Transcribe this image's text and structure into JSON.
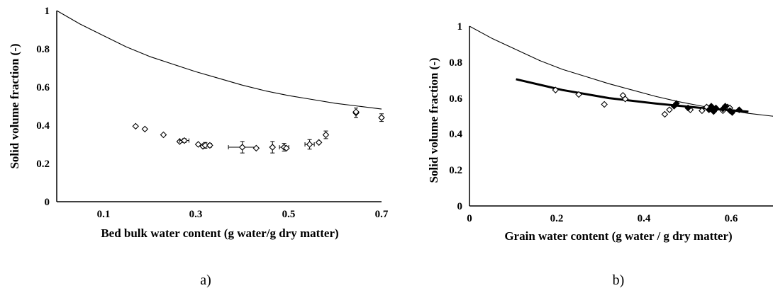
{
  "chart_data": [
    {
      "type": "scatter",
      "title": "",
      "caption": "a)",
      "xlabel": "Bed bulk water content (g water/g dry matter)",
      "ylabel": "Solid volume fraction (-)",
      "xlim": [
        0,
        0.7
      ],
      "ylim": [
        0,
        1
      ],
      "x_ticks": [
        "0.1",
        "0.3",
        "0.5",
        "0.7"
      ],
      "y_ticks": [
        "0",
        "0.2",
        "0.4",
        "0.6",
        "0.8",
        "1"
      ],
      "grid": false,
      "series": [
        {
          "style": "thin-line",
          "x": [
            0.0,
            0.05,
            0.1,
            0.15,
            0.2,
            0.25,
            0.3,
            0.35,
            0.4,
            0.45,
            0.5,
            0.55,
            0.6,
            0.65,
            0.7
          ],
          "y": [
            1.0,
            0.93,
            0.87,
            0.81,
            0.76,
            0.72,
            0.68,
            0.645,
            0.61,
            0.58,
            0.555,
            0.535,
            0.515,
            0.5,
            0.485
          ]
        },
        {
          "style": "open-diamond",
          "points": [
            {
              "x": 0.17,
              "y": 0.395,
              "ey": 0,
              "ex": 0
            },
            {
              "x": 0.19,
              "y": 0.38,
              "ey": 0,
              "ex": 0
            },
            {
              "x": 0.23,
              "y": 0.35,
              "ey": 0,
              "ex": 0
            },
            {
              "x": 0.265,
              "y": 0.315,
              "ey": 0,
              "ex": 0
            },
            {
              "x": 0.275,
              "y": 0.32,
              "ey": 0.01,
              "ex": 0.01
            },
            {
              "x": 0.305,
              "y": 0.3,
              "ey": 0,
              "ex": 0
            },
            {
              "x": 0.315,
              "y": 0.29,
              "ey": 0,
              "ex": 0
            },
            {
              "x": 0.32,
              "y": 0.295,
              "ey": 0.015,
              "ex": 0
            },
            {
              "x": 0.33,
              "y": 0.295,
              "ey": 0.01,
              "ex": 0
            },
            {
              "x": 0.4,
              "y": 0.285,
              "ey": 0.03,
              "ex": 0.03
            },
            {
              "x": 0.43,
              "y": 0.28,
              "ey": 0,
              "ex": 0
            },
            {
              "x": 0.465,
              "y": 0.285,
              "ey": 0.03,
              "ex": 0
            },
            {
              "x": 0.49,
              "y": 0.285,
              "ey": 0.02,
              "ex": 0.01
            },
            {
              "x": 0.495,
              "y": 0.28,
              "ey": 0,
              "ex": 0
            },
            {
              "x": 0.545,
              "y": 0.3,
              "ey": 0.025,
              "ex": 0.01
            },
            {
              "x": 0.565,
              "y": 0.31,
              "ey": 0,
              "ex": 0
            },
            {
              "x": 0.58,
              "y": 0.35,
              "ey": 0.02,
              "ex": 0
            },
            {
              "x": 0.645,
              "y": 0.465,
              "ey": 0.025,
              "ex": 0
            },
            {
              "x": 0.645,
              "y": 0.47,
              "ey": 0,
              "ex": 0
            },
            {
              "x": 0.7,
              "y": 0.44,
              "ey": 0.02,
              "ex": 0
            }
          ]
        }
      ]
    },
    {
      "type": "scatter",
      "title": "",
      "caption": "b)",
      "xlabel": "Grain water content (g water / g dry matter)",
      "ylabel": "Solid volume fraction (-)",
      "xlim": [
        0,
        0.7
      ],
      "ylim": [
        0,
        1
      ],
      "x_ticks": [
        "0",
        "0.2",
        "0.4",
        "0.6"
      ],
      "y_ticks": [
        "0",
        "0.2",
        "0.4",
        "0.6",
        "0.8",
        "1"
      ],
      "grid": false,
      "series": [
        {
          "style": "thin-line",
          "x": [
            0.0,
            0.05,
            0.1,
            0.15,
            0.2,
            0.25,
            0.3,
            0.35,
            0.4,
            0.45,
            0.5,
            0.55,
            0.6,
            0.65,
            0.7
          ],
          "y": [
            1.0,
            0.93,
            0.87,
            0.81,
            0.76,
            0.72,
            0.68,
            0.645,
            0.61,
            0.58,
            0.555,
            0.535,
            0.515,
            0.5,
            0.485
          ]
        },
        {
          "style": "thick-line",
          "x": [
            0.1,
            0.2,
            0.3,
            0.4,
            0.5,
            0.6
          ],
          "y": [
            0.705,
            0.645,
            0.6,
            0.57,
            0.545,
            0.525
          ]
        },
        {
          "style": "open-diamond",
          "points": [
            {
              "x": 0.185,
              "y": 0.645
            },
            {
              "x": 0.235,
              "y": 0.62
            },
            {
              "x": 0.29,
              "y": 0.565
            },
            {
              "x": 0.33,
              "y": 0.615
            },
            {
              "x": 0.335,
              "y": 0.595
            },
            {
              "x": 0.42,
              "y": 0.51
            },
            {
              "x": 0.43,
              "y": 0.535
            },
            {
              "x": 0.475,
              "y": 0.535
            },
            {
              "x": 0.5,
              "y": 0.53
            },
            {
              "x": 0.51,
              "y": 0.55
            },
            {
              "x": 0.53,
              "y": 0.54
            },
            {
              "x": 0.545,
              "y": 0.53
            },
            {
              "x": 0.555,
              "y": 0.55
            },
            {
              "x": 0.56,
              "y": 0.545
            }
          ]
        },
        {
          "style": "filled-diamond",
          "points": [
            {
              "x": 0.44,
              "y": 0.555
            },
            {
              "x": 0.445,
              "y": 0.57
            },
            {
              "x": 0.47,
              "y": 0.545
            },
            {
              "x": 0.515,
              "y": 0.535
            },
            {
              "x": 0.52,
              "y": 0.555
            },
            {
              "x": 0.525,
              "y": 0.525
            },
            {
              "x": 0.53,
              "y": 0.545
            },
            {
              "x": 0.545,
              "y": 0.54
            },
            {
              "x": 0.55,
              "y": 0.555
            },
            {
              "x": 0.56,
              "y": 0.53
            },
            {
              "x": 0.565,
              "y": 0.52
            },
            {
              "x": 0.58,
              "y": 0.535
            }
          ]
        }
      ]
    }
  ]
}
